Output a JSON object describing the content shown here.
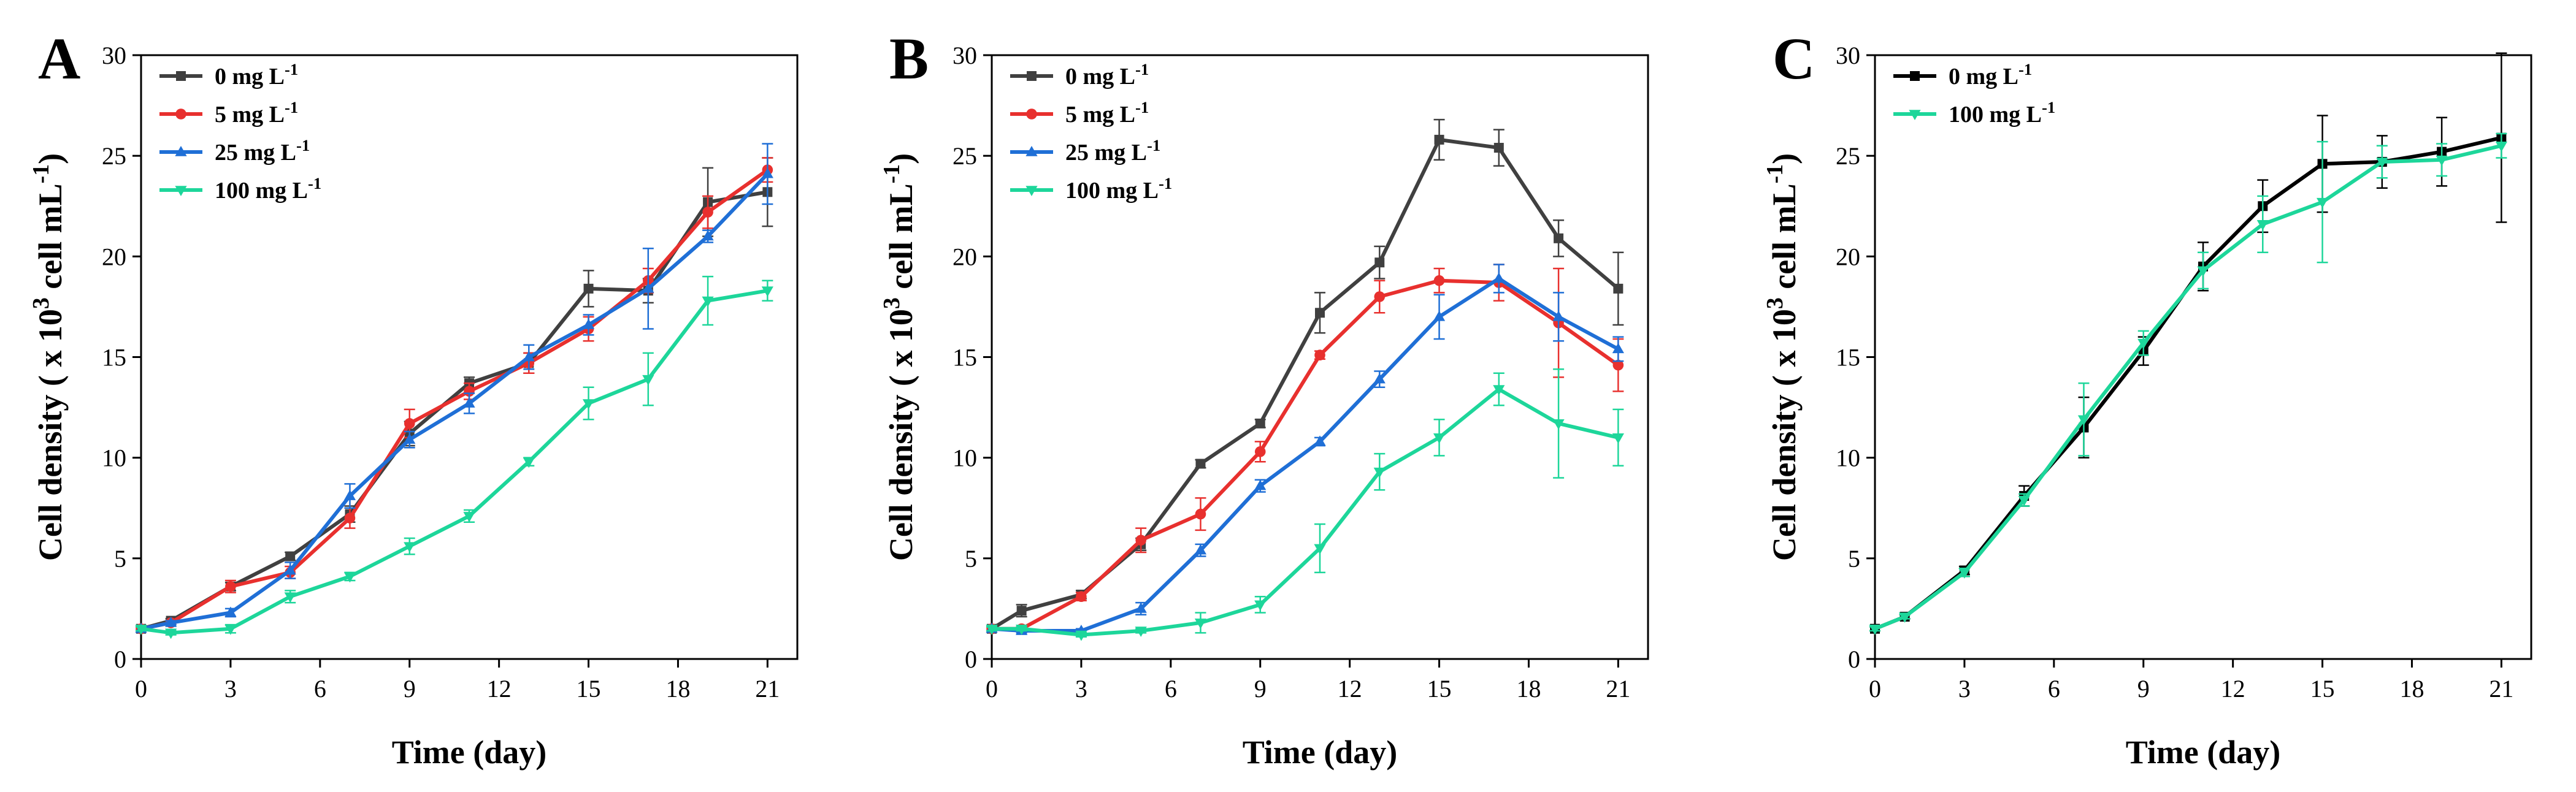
{
  "chart_data": [
    {
      "panel": "A",
      "type": "line",
      "xlabel": "Time (day)",
      "ylabel": {
        "prefix": "Cell density ( x 10",
        "sup1": "3",
        "mid": " cell mL",
        "sup2": "-1",
        "suffix": ")"
      },
      "xlim": [
        0,
        22
      ],
      "ylim": [
        0,
        30
      ],
      "xticks": [
        0,
        3,
        6,
        9,
        12,
        15,
        18,
        21
      ],
      "yticks": [
        0,
        5,
        10,
        15,
        20,
        25,
        30
      ],
      "legend_position": "top-left",
      "x": [
        0,
        1,
        3,
        5,
        7,
        9,
        11,
        13,
        15,
        17,
        19,
        21
      ],
      "series": [
        {
          "name": "0 mg L",
          "sup": "-1",
          "color": "#404040",
          "marker": "square",
          "values": [
            1.5,
            1.9,
            3.6,
            5.1,
            7.2,
            11.2,
            13.7,
            14.7,
            18.4,
            18.3,
            22.7,
            23.2
          ],
          "errors": [
            0.1,
            0.1,
            0.2,
            0.2,
            0.4,
            0.6,
            0.3,
            0.5,
            0.9,
            0.6,
            1.7,
            1.7
          ]
        },
        {
          "name": "5 mg L",
          "sup": "-1",
          "color": "#e8302e",
          "marker": "circle",
          "values": [
            1.5,
            1.8,
            3.6,
            4.3,
            7.0,
            11.7,
            13.3,
            14.7,
            16.4,
            18.8,
            22.2,
            24.3
          ],
          "errors": [
            0.1,
            0.1,
            0.3,
            0.3,
            0.5,
            0.7,
            0.4,
            0.5,
            0.6,
            0.6,
            0.8,
            0.6
          ]
        },
        {
          "name": "25 mg L",
          "sup": "-1",
          "color": "#1f6fd6",
          "marker": "triangle-up",
          "values": [
            1.5,
            1.8,
            2.3,
            4.4,
            8.1,
            10.9,
            12.7,
            15.0,
            16.6,
            18.4,
            21.0,
            24.1
          ],
          "errors": [
            0.1,
            0.1,
            0.2,
            0.4,
            0.6,
            0.4,
            0.5,
            0.6,
            0.5,
            2.0,
            0.3,
            1.5
          ]
        },
        {
          "name": "100 mg L",
          "sup": "-1",
          "color": "#1dd69a",
          "marker": "triangle-down",
          "values": [
            1.5,
            1.3,
            1.5,
            3.1,
            4.1,
            5.6,
            7.1,
            9.8,
            12.7,
            13.9,
            17.8,
            18.3
          ],
          "errors": [
            0.1,
            0.1,
            0.2,
            0.3,
            0.2,
            0.4,
            0.3,
            0.2,
            0.8,
            1.3,
            1.2,
            0.5
          ]
        }
      ]
    },
    {
      "panel": "B",
      "type": "line",
      "xlabel": "Time (day)",
      "ylabel": {
        "prefix": "Cell density ( x 10",
        "sup1": "3",
        "mid": " cell mL",
        "sup2": "-1",
        "suffix": ")"
      },
      "xlim": [
        0,
        22
      ],
      "ylim": [
        0,
        30
      ],
      "xticks": [
        0,
        3,
        6,
        9,
        12,
        15,
        18,
        21
      ],
      "yticks": [
        0,
        5,
        10,
        15,
        20,
        25,
        30
      ],
      "legend_position": "top-left",
      "x": [
        0,
        1,
        3,
        5,
        7,
        9,
        11,
        13,
        15,
        17,
        19,
        21
      ],
      "series": [
        {
          "name": "0 mg L",
          "sup": "-1",
          "color": "#404040",
          "marker": "square",
          "values": [
            1.5,
            2.4,
            3.2,
            5.7,
            9.7,
            11.7,
            17.2,
            19.7,
            25.8,
            25.4,
            20.9,
            18.4
          ],
          "errors": [
            0.1,
            0.3,
            0.2,
            0.3,
            0.2,
            0.2,
            1.0,
            0.8,
            1.0,
            0.9,
            0.9,
            1.8
          ]
        },
        {
          "name": "5 mg L",
          "sup": "-1",
          "color": "#e8302e",
          "marker": "circle",
          "values": [
            1.5,
            1.5,
            3.1,
            5.9,
            7.2,
            10.3,
            15.1,
            18.0,
            18.8,
            18.7,
            16.7,
            14.6
          ],
          "errors": [
            0.1,
            0.1,
            0.2,
            0.6,
            0.8,
            0.5,
            0.2,
            0.8,
            0.6,
            0.9,
            2.7,
            1.3
          ]
        },
        {
          "name": "25 mg L",
          "sup": "-1",
          "color": "#1f6fd6",
          "marker": "triangle-up",
          "values": [
            1.5,
            1.4,
            1.4,
            2.5,
            5.4,
            8.6,
            10.8,
            13.9,
            17.0,
            18.9,
            17.0,
            15.4
          ],
          "errors": [
            0.1,
            0.1,
            0.1,
            0.3,
            0.3,
            0.3,
            0.2,
            0.4,
            1.1,
            0.7,
            1.2,
            0.6
          ]
        },
        {
          "name": "100 mg L",
          "sup": "-1",
          "color": "#1dd69a",
          "marker": "triangle-down",
          "values": [
            1.5,
            1.5,
            1.2,
            1.4,
            1.8,
            2.7,
            5.5,
            9.3,
            11.0,
            13.4,
            11.7,
            11.0
          ],
          "errors": [
            0.1,
            0.1,
            0.1,
            0.1,
            0.5,
            0.4,
            1.2,
            0.9,
            0.9,
            0.8,
            2.7,
            1.4
          ]
        }
      ]
    },
    {
      "panel": "C",
      "type": "line",
      "xlabel": "Time (day)",
      "ylabel": {
        "prefix": "Cell density ( x 10",
        "sup1": "3",
        "mid": " cell mL",
        "sup2": "-1",
        "suffix": ")"
      },
      "xlim": [
        0,
        22
      ],
      "ylim": [
        0,
        30
      ],
      "xticks": [
        0,
        3,
        6,
        9,
        12,
        15,
        18,
        21
      ],
      "yticks": [
        0,
        5,
        10,
        15,
        20,
        25,
        30
      ],
      "legend_position": "top-left",
      "x": [
        0,
        1,
        3,
        5,
        7,
        9,
        11,
        13,
        15,
        17,
        19,
        21
      ],
      "series": [
        {
          "name": "0 mg L",
          "sup": "-1",
          "color": "#000000",
          "marker": "square",
          "values": [
            1.5,
            2.1,
            4.4,
            8.1,
            11.5,
            15.3,
            19.5,
            22.5,
            24.6,
            24.7,
            25.2,
            25.9
          ],
          "errors": [
            0.1,
            0.1,
            0.2,
            0.5,
            1.5,
            0.7,
            1.2,
            1.3,
            2.4,
            1.3,
            1.7,
            4.2
          ]
        },
        {
          "name": "100 mg L",
          "sup": "-1",
          "color": "#1dd69a",
          "marker": "triangle-down",
          "values": [
            1.5,
            2.1,
            4.3,
            7.9,
            11.9,
            15.7,
            19.3,
            21.6,
            22.7,
            24.7,
            24.8,
            25.5
          ],
          "errors": [
            0.1,
            0.1,
            0.2,
            0.3,
            1.8,
            0.6,
            0.9,
            1.4,
            3.0,
            0.8,
            0.8,
            0.6
          ]
        }
      ]
    }
  ]
}
